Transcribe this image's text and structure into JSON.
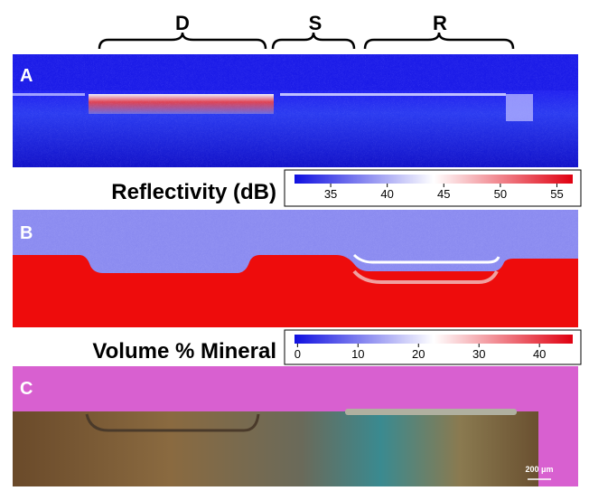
{
  "brackets": [
    {
      "label": "D"
    },
    {
      "label": "S"
    },
    {
      "label": "R"
    }
  ],
  "panels": [
    {
      "label": "A"
    },
    {
      "label": "B"
    },
    {
      "label": "C"
    }
  ],
  "colorbars": [
    {
      "title": "Reflectivity (dB)",
      "lim": [
        31.8,
        56.4
      ],
      "ticks": [
        35,
        40,
        45,
        50,
        55
      ]
    },
    {
      "title": "Volume % Mineral",
      "lim": [
        -0.5,
        45.5
      ],
      "ticks": [
        0,
        10,
        20,
        30,
        40
      ]
    }
  ],
  "scale_bar": "200 μm"
}
